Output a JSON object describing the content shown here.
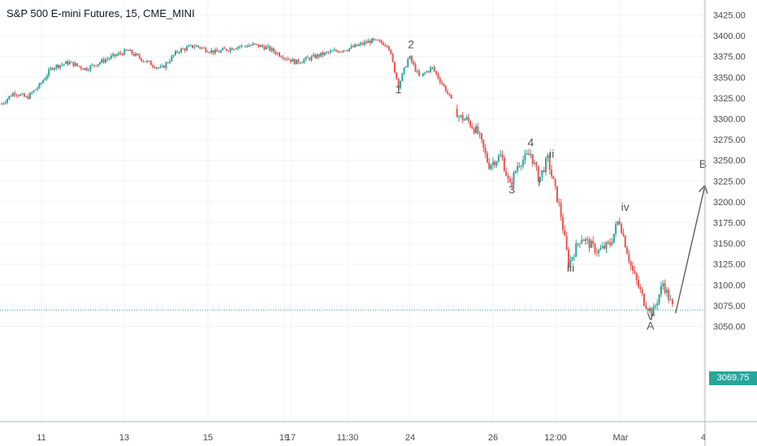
{
  "header": {
    "title": "S&P 500 E-mini Futures, 15, CME_MINI"
  },
  "chart_data": {
    "type": "candlestick",
    "title": "S&P 500 E-mini Futures, 15, CME_MINI",
    "y_axis": {
      "position": "right",
      "ticks": [
        "3425.00",
        "3400.00",
        "3375.00",
        "3350.00",
        "3325.00",
        "3300.00",
        "3275.00",
        "3250.00",
        "3225.00",
        "3200.00",
        "3175.00",
        "3150.00",
        "3125.00",
        "3100.00",
        "3075.00",
        "3050.00"
      ],
      "ylim": [
        3035,
        3435
      ]
    },
    "x_axis": {
      "ticks": [
        "11",
        "13",
        "15",
        "17",
        "19",
        "11:30",
        "24",
        "26",
        "12:00",
        "Mar",
        "4"
      ]
    },
    "grid": true,
    "last_price": {
      "value": 3069.75,
      "label": "3069.75",
      "color": "#26a69a"
    },
    "price_path": [
      {
        "t": 0,
        "p": 3318
      },
      {
        "t": 0.3,
        "p": 3332
      },
      {
        "t": 0.6,
        "p": 3325
      },
      {
        "t": 0.9,
        "p": 3340
      },
      {
        "t": 1.2,
        "p": 3362
      },
      {
        "t": 1.6,
        "p": 3368
      },
      {
        "t": 2.0,
        "p": 3360
      },
      {
        "t": 2.5,
        "p": 3372
      },
      {
        "t": 3.0,
        "p": 3382
      },
      {
        "t": 3.4,
        "p": 3370
      },
      {
        "t": 3.8,
        "p": 3360
      },
      {
        "t": 4.2,
        "p": 3382
      },
      {
        "t": 4.6,
        "p": 3388
      },
      {
        "t": 5.1,
        "p": 3380
      },
      {
        "t": 5.6,
        "p": 3387
      },
      {
        "t": 6.0,
        "p": 3389
      },
      {
        "t": 6.3,
        "p": 3386
      },
      {
        "t": 6.6,
        "p": 3378
      },
      {
        "t": 7.0,
        "p": 3368
      },
      {
        "t": 7.4,
        "p": 3374
      },
      {
        "t": 7.8,
        "p": 3380
      },
      {
        "t": 8.3,
        "p": 3385
      },
      {
        "t": 8.8,
        "p": 3394
      },
      {
        "t": 9.2,
        "p": 3390
      },
      {
        "t": 9.45,
        "p": 3340
      },
      {
        "t": 9.7,
        "p": 3375
      },
      {
        "t": 9.95,
        "p": 3350
      },
      {
        "t": 10.25,
        "p": 3362
      },
      {
        "t": 10.6,
        "p": 3333
      },
      {
        "t": 10.9,
        "p": 3302
      },
      {
        "t": 11.1,
        "p": 3298
      },
      {
        "t": 11.35,
        "p": 3282
      },
      {
        "t": 11.6,
        "p": 3244
      },
      {
        "t": 11.9,
        "p": 3256
      },
      {
        "t": 12.1,
        "p": 3218
      },
      {
        "t": 12.3,
        "p": 3246
      },
      {
        "t": 12.6,
        "p": 3258
      },
      {
        "t": 12.8,
        "p": 3227
      },
      {
        "t": 13.0,
        "p": 3252
      },
      {
        "t": 13.3,
        "p": 3190
      },
      {
        "t": 13.5,
        "p": 3125
      },
      {
        "t": 13.8,
        "p": 3158
      },
      {
        "t": 14.2,
        "p": 3140
      },
      {
        "t": 14.5,
        "p": 3150
      },
      {
        "t": 14.7,
        "p": 3180
      },
      {
        "t": 15.0,
        "p": 3120
      },
      {
        "t": 15.3,
        "p": 3080
      },
      {
        "t": 15.5,
        "p": 3065
      },
      {
        "t": 15.75,
        "p": 3102
      },
      {
        "t": 16.0,
        "p": 3070
      }
    ],
    "annotations": [
      {
        "label": "1",
        "t": 9.45,
        "p": 3331
      },
      {
        "label": "2",
        "t": 9.75,
        "p": 3385
      },
      {
        "label": "3",
        "t": 12.15,
        "p": 3210
      },
      {
        "label": "4",
        "t": 12.6,
        "p": 3267
      },
      {
        "label": "i",
        "t": 12.8,
        "p": 3219
      },
      {
        "label": "ii",
        "t": 13.1,
        "p": 3253
      },
      {
        "label": "iii",
        "t": 13.55,
        "p": 3116
      },
      {
        "label": "iv",
        "t": 14.85,
        "p": 3189
      },
      {
        "label": "v",
        "t": 15.45,
        "p": 3058
      },
      {
        "label": "A",
        "t": 15.45,
        "p": 3046
      },
      {
        "label": "B",
        "t": 16.7,
        "p": 3241
      }
    ],
    "projection": {
      "from": {
        "t": 16.05,
        "p": 3066
      },
      "to": {
        "t": 16.75,
        "p": 3220
      }
    },
    "colors": {
      "up": "#26a69a",
      "down": "#ef5350",
      "label": "#555555",
      "arrow": "#555555",
      "grid": "#f0f3fa"
    }
  }
}
